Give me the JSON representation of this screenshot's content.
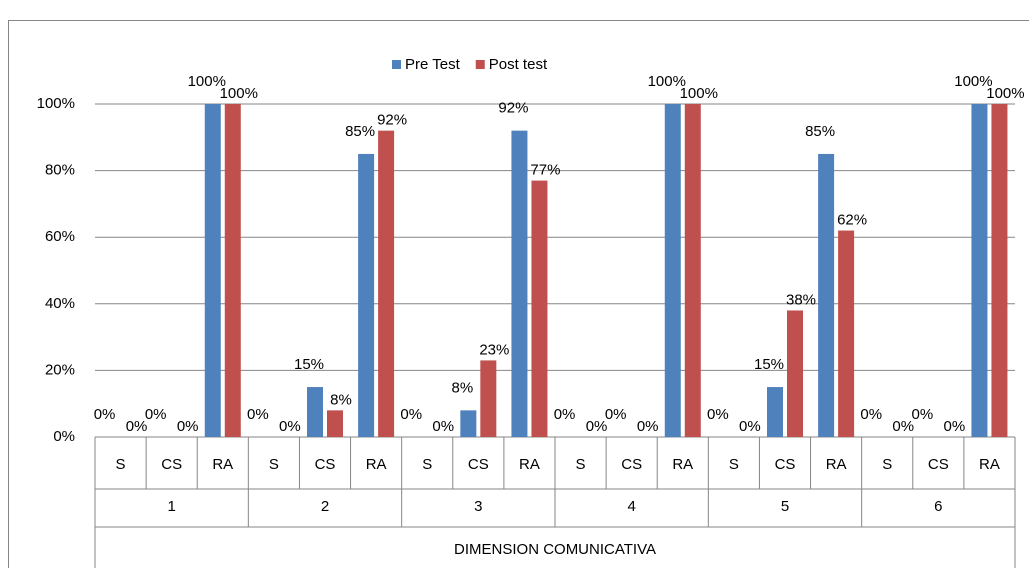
{
  "chart_data": {
    "type": "bar",
    "categories": [
      "S",
      "CS",
      "RA",
      "S",
      "CS",
      "RA",
      "S",
      "CS",
      "RA",
      "S",
      "CS",
      "RA",
      "S",
      "CS",
      "RA",
      "S",
      "CS",
      "RA"
    ],
    "groups": [
      "1",
      "2",
      "3",
      "4",
      "5",
      "6"
    ],
    "x_axis_label": "DIMENSION COMUNICATIVA",
    "series": [
      {
        "name": "Pre Test",
        "color": "#4f81bd",
        "values": [
          0,
          0,
          100,
          0,
          15,
          85,
          0,
          8,
          92,
          0,
          0,
          100,
          0,
          15,
          85,
          0,
          0,
          100
        ],
        "value_labels": [
          "0%",
          "0%",
          "100%",
          "0%",
          "15%",
          "85%",
          "0%",
          "8%",
          "92%",
          "0%",
          "0%",
          "100%",
          "0%",
          "15%",
          "85%",
          "0%",
          "0%",
          "100%"
        ]
      },
      {
        "name": "Post test",
        "color": "#c0504d",
        "values": [
          0,
          0,
          100,
          0,
          8,
          92,
          0,
          23,
          77,
          0,
          0,
          100,
          0,
          38,
          62,
          0,
          0,
          100
        ],
        "value_labels": [
          "0%",
          "0%",
          "100%",
          "0%",
          "8%",
          "92%",
          "0%",
          "23%",
          "77%",
          "0%",
          "0%",
          "100%",
          "0%",
          "38%",
          "62%",
          "0%",
          "0%",
          "100%"
        ]
      }
    ],
    "ylim": [
      0,
      100
    ],
    "yticks": [
      {
        "value": 0,
        "label": "0%"
      },
      {
        "value": 20,
        "label": "20%"
      },
      {
        "value": 40,
        "label": "40%"
      },
      {
        "value": 60,
        "label": "60%"
      },
      {
        "value": 80,
        "label": "80%"
      },
      {
        "value": 100,
        "label": "100%"
      }
    ],
    "grid": true,
    "legend": "top"
  }
}
